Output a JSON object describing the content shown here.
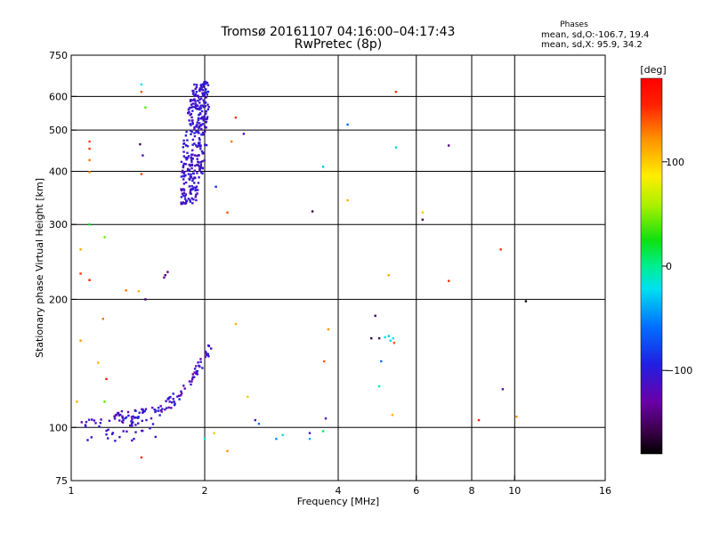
{
  "title": {
    "line1": "Tromsø 20161107 04:16:00–04:17:43",
    "line2": "RwPretec (8p)"
  },
  "phases": {
    "heading": "Phases",
    "line_o": "mean, sd,O:-106.7, 19.4",
    "line_x": "mean, sd,X:  95.9, 34.2"
  },
  "colorbar": {
    "unit": "[deg]",
    "ticks": [
      {
        "value": 100,
        "label": "100"
      },
      {
        "value": 0,
        "label": "0"
      },
      {
        "value": -100,
        "label": "−100"
      }
    ],
    "range": [
      -180,
      180
    ]
  },
  "chart_data": {
    "type": "scatter",
    "xlabel": "Frequency [MHz]",
    "ylabel": "Stationary phase Virtual Height [km]",
    "x_scale": "log",
    "y_scale": "log",
    "xlim": [
      1,
      16
    ],
    "ylim": [
      75,
      750
    ],
    "grid": true,
    "x_ticks": [
      {
        "value": 1,
        "label": "1"
      },
      {
        "value": 2,
        "label": "2"
      },
      {
        "value": 4,
        "label": "4"
      },
      {
        "value": 6,
        "label": "6"
      },
      {
        "value": 8,
        "label": "8"
      },
      {
        "value": 10,
        "label": "10"
      },
      {
        "value": 16,
        "label": "16"
      }
    ],
    "x_gridlines": [
      2,
      4,
      6,
      8,
      10
    ],
    "y_ticks": [
      {
        "value": 75,
        "label": "75"
      },
      {
        "value": 100,
        "label": "100"
      },
      {
        "value": 200,
        "label": "200"
      },
      {
        "value": 300,
        "label": "300"
      },
      {
        "value": 400,
        "label": "400"
      },
      {
        "value": 500,
        "label": "500"
      },
      {
        "value": 600,
        "label": "600"
      },
      {
        "value": 750,
        "label": "750"
      }
    ],
    "y_gridlines": [
      100,
      200,
      300,
      400,
      500,
      600
    ],
    "color_by": "phase [deg]",
    "clusters": [
      {
        "freq_range": [
          1.72,
          2.07
        ],
        "height_range": [
          335,
          650
        ],
        "phase_range": [
          -120,
          -95
        ],
        "count": 320,
        "shape": "column"
      },
      {
        "freq_range": [
          1.25,
          2.1
        ],
        "height_range": [
          100,
          165
        ],
        "phase_range": [
          -130,
          -90
        ],
        "count": 110,
        "shape": "rising_trace"
      },
      {
        "freq_range": [
          1.03,
          1.55
        ],
        "height_range": [
          93,
          105
        ],
        "phase_range": [
          -120,
          -100
        ],
        "count": 40,
        "shape": "band"
      }
    ],
    "points": [
      {
        "x": 1.44,
        "y": 640,
        "phase": -20
      },
      {
        "x": 1.44,
        "y": 615,
        "phase": 140
      },
      {
        "x": 1.47,
        "y": 565,
        "phase": 40
      },
      {
        "x": 1.1,
        "y": 470,
        "phase": 145
      },
      {
        "x": 1.1,
        "y": 452,
        "phase": 150
      },
      {
        "x": 1.1,
        "y": 425,
        "phase": 130
      },
      {
        "x": 1.1,
        "y": 398,
        "phase": 120
      },
      {
        "x": 1.43,
        "y": 463,
        "phase": -150
      },
      {
        "x": 1.45,
        "y": 436,
        "phase": -110
      },
      {
        "x": 1.44,
        "y": 394,
        "phase": 145
      },
      {
        "x": 1.05,
        "y": 262,
        "phase": 110
      },
      {
        "x": 1.1,
        "y": 300,
        "phase": 20
      },
      {
        "x": 1.19,
        "y": 280,
        "phase": 45
      },
      {
        "x": 1.05,
        "y": 230,
        "phase": 150
      },
      {
        "x": 1.1,
        "y": 222,
        "phase": 160
      },
      {
        "x": 1.33,
        "y": 210,
        "phase": 130
      },
      {
        "x": 1.42,
        "y": 209,
        "phase": 110
      },
      {
        "x": 1.47,
        "y": 200,
        "phase": -150
      },
      {
        "x": 1.63,
        "y": 228,
        "phase": -150
      },
      {
        "x": 1.65,
        "y": 232,
        "phase": -140
      },
      {
        "x": 1.62,
        "y": 225,
        "phase": -130
      },
      {
        "x": 2.35,
        "y": 535,
        "phase": 150
      },
      {
        "x": 2.3,
        "y": 470,
        "phase": 130
      },
      {
        "x": 2.12,
        "y": 368,
        "phase": -90
      },
      {
        "x": 2.25,
        "y": 320,
        "phase": 140
      },
      {
        "x": 2.45,
        "y": 490,
        "phase": -120
      },
      {
        "x": 3.5,
        "y": 322,
        "phase": -160
      },
      {
        "x": 3.7,
        "y": 410,
        "phase": -30
      },
      {
        "x": 4.2,
        "y": 515,
        "phase": -60
      },
      {
        "x": 4.2,
        "y": 342,
        "phase": 110
      },
      {
        "x": 5.4,
        "y": 615,
        "phase": 150
      },
      {
        "x": 5.4,
        "y": 455,
        "phase": -20
      },
      {
        "x": 6.2,
        "y": 320,
        "phase": 100
      },
      {
        "x": 6.2,
        "y": 308,
        "phase": -150
      },
      {
        "x": 7.1,
        "y": 460,
        "phase": -140
      },
      {
        "x": 7.1,
        "y": 221,
        "phase": 150
      },
      {
        "x": 5.2,
        "y": 228,
        "phase": 110
      },
      {
        "x": 9.3,
        "y": 262,
        "phase": 150
      },
      {
        "x": 10.6,
        "y": 198,
        "phase": -170
      },
      {
        "x": 1.05,
        "y": 160,
        "phase": 120
      },
      {
        "x": 1.15,
        "y": 142,
        "phase": 110
      },
      {
        "x": 1.18,
        "y": 180,
        "phase": 130
      },
      {
        "x": 1.2,
        "y": 130,
        "phase": 160
      },
      {
        "x": 1.03,
        "y": 115,
        "phase": 110
      },
      {
        "x": 1.19,
        "y": 115,
        "phase": 40
      },
      {
        "x": 2.35,
        "y": 175,
        "phase": 110
      },
      {
        "x": 3.8,
        "y": 170,
        "phase": 120
      },
      {
        "x": 3.72,
        "y": 143,
        "phase": 140
      },
      {
        "x": 2.5,
        "y": 118,
        "phase": 100
      },
      {
        "x": 2.1,
        "y": 97,
        "phase": 100
      },
      {
        "x": 2.25,
        "y": 88,
        "phase": 120
      },
      {
        "x": 1.44,
        "y": 85,
        "phase": 150
      },
      {
        "x": 2.0,
        "y": 94,
        "phase": -20
      },
      {
        "x": 2.6,
        "y": 104,
        "phase": -110
      },
      {
        "x": 2.65,
        "y": 102,
        "phase": -60
      },
      {
        "x": 2.9,
        "y": 94,
        "phase": -50
      },
      {
        "x": 3.0,
        "y": 96,
        "phase": -10
      },
      {
        "x": 3.45,
        "y": 97,
        "phase": -110
      },
      {
        "x": 3.45,
        "y": 94,
        "phase": -40
      },
      {
        "x": 3.7,
        "y": 98,
        "phase": 10
      },
      {
        "x": 3.75,
        "y": 105,
        "phase": -120
      },
      {
        "x": 4.85,
        "y": 183,
        "phase": -150
      },
      {
        "x": 4.75,
        "y": 162,
        "phase": -160
      },
      {
        "x": 4.95,
        "y": 162,
        "phase": -150
      },
      {
        "x": 5.1,
        "y": 163,
        "phase": -20
      },
      {
        "x": 5.2,
        "y": 164,
        "phase": -30
      },
      {
        "x": 5.25,
        "y": 160,
        "phase": -25
      },
      {
        "x": 5.32,
        "y": 162,
        "phase": -20
      },
      {
        "x": 5.35,
        "y": 158,
        "phase": 140
      },
      {
        "x": 5.0,
        "y": 143,
        "phase": -60
      },
      {
        "x": 4.95,
        "y": 125,
        "phase": -10
      },
      {
        "x": 5.3,
        "y": 107,
        "phase": 110
      },
      {
        "x": 8.3,
        "y": 104,
        "phase": 160
      },
      {
        "x": 9.4,
        "y": 123,
        "phase": -120
      },
      {
        "x": 10.1,
        "y": 106,
        "phase": 120
      }
    ]
  }
}
